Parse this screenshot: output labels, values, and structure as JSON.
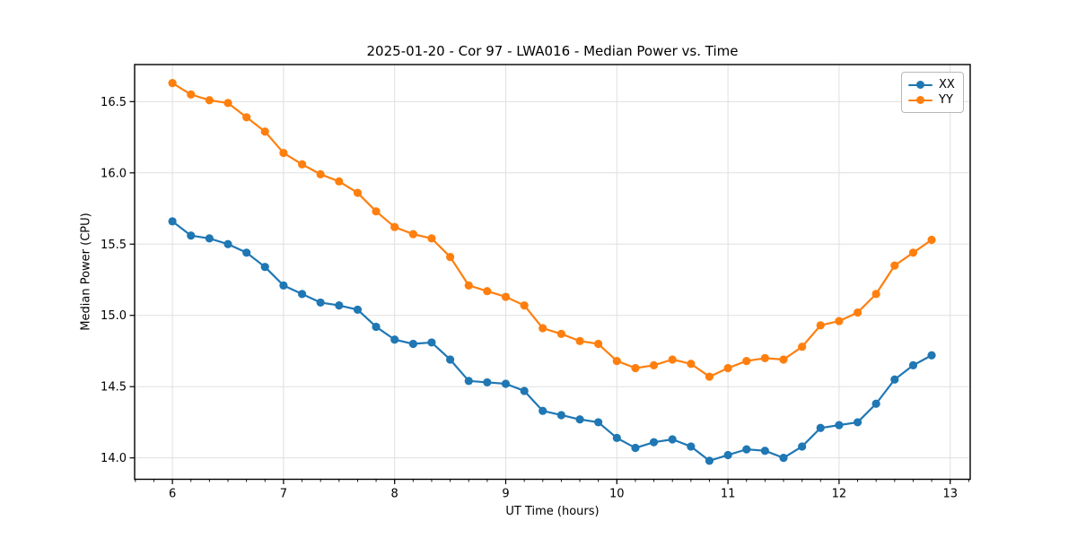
{
  "figure": {
    "background": "#ffffff",
    "text_color": "#000000"
  },
  "chart_data": {
    "type": "line",
    "title": "2025-01-20 - Cor 97 - LWA016 - Median Power vs. Time",
    "xlabel": "UT Time (hours)",
    "ylabel": "Median Power (CPU)",
    "xlim": [
      5.66,
      13.18
    ],
    "ylim": [
      13.85,
      16.76
    ],
    "xticks": [
      6,
      7,
      8,
      9,
      10,
      11,
      12,
      13
    ],
    "xtick_labels": [
      "6",
      "7",
      "8",
      "9",
      "10",
      "11",
      "12",
      "13"
    ],
    "x_minor_interval": 0.166667,
    "yticks": [
      14.0,
      14.5,
      15.0,
      15.5,
      16.0,
      16.5
    ],
    "ytick_labels": [
      "14.0",
      "14.5",
      "15.0",
      "15.5",
      "16.0",
      "16.5"
    ],
    "grid": true,
    "grid_color": "#e0e0e0",
    "spine_color": "#000000",
    "legend_position": "upper right",
    "x": [
      6.0,
      6.167,
      6.333,
      6.5,
      6.667,
      6.833,
      7.0,
      7.167,
      7.333,
      7.5,
      7.667,
      7.833,
      8.0,
      8.167,
      8.333,
      8.5,
      8.667,
      8.833,
      9.0,
      9.167,
      9.333,
      9.5,
      9.667,
      9.833,
      10.0,
      10.167,
      10.333,
      10.5,
      10.667,
      10.833,
      11.0,
      11.167,
      11.333,
      11.5,
      11.667,
      11.833,
      12.0,
      12.167,
      12.333,
      12.5,
      12.667,
      12.833
    ],
    "series": [
      {
        "name": "XX",
        "color": "#1f77b4",
        "marker": "circle",
        "values": [
          15.66,
          15.56,
          15.54,
          15.5,
          15.44,
          15.34,
          15.21,
          15.15,
          15.09,
          15.07,
          15.04,
          14.92,
          14.83,
          14.8,
          14.81,
          14.69,
          14.54,
          14.53,
          14.52,
          14.47,
          14.33,
          14.3,
          14.27,
          14.25,
          14.14,
          14.07,
          14.11,
          14.13,
          14.08,
          13.98,
          14.02,
          14.06,
          14.05,
          14.0,
          14.08,
          14.21,
          14.23,
          14.25,
          14.38,
          14.55,
          14.65,
          14.72
        ]
      },
      {
        "name": "YY",
        "color": "#ff7f0e",
        "marker": "circle",
        "values": [
          16.63,
          16.55,
          16.51,
          16.49,
          16.39,
          16.29,
          16.14,
          16.06,
          15.99,
          15.94,
          15.86,
          15.73,
          15.62,
          15.57,
          15.54,
          15.41,
          15.21,
          15.17,
          15.13,
          15.07,
          14.91,
          14.87,
          14.82,
          14.8,
          14.68,
          14.63,
          14.65,
          14.69,
          14.66,
          14.57,
          14.63,
          14.68,
          14.7,
          14.69,
          14.78,
          14.93,
          14.96,
          15.02,
          15.15,
          15.35,
          15.44,
          15.53
        ]
      }
    ]
  }
}
